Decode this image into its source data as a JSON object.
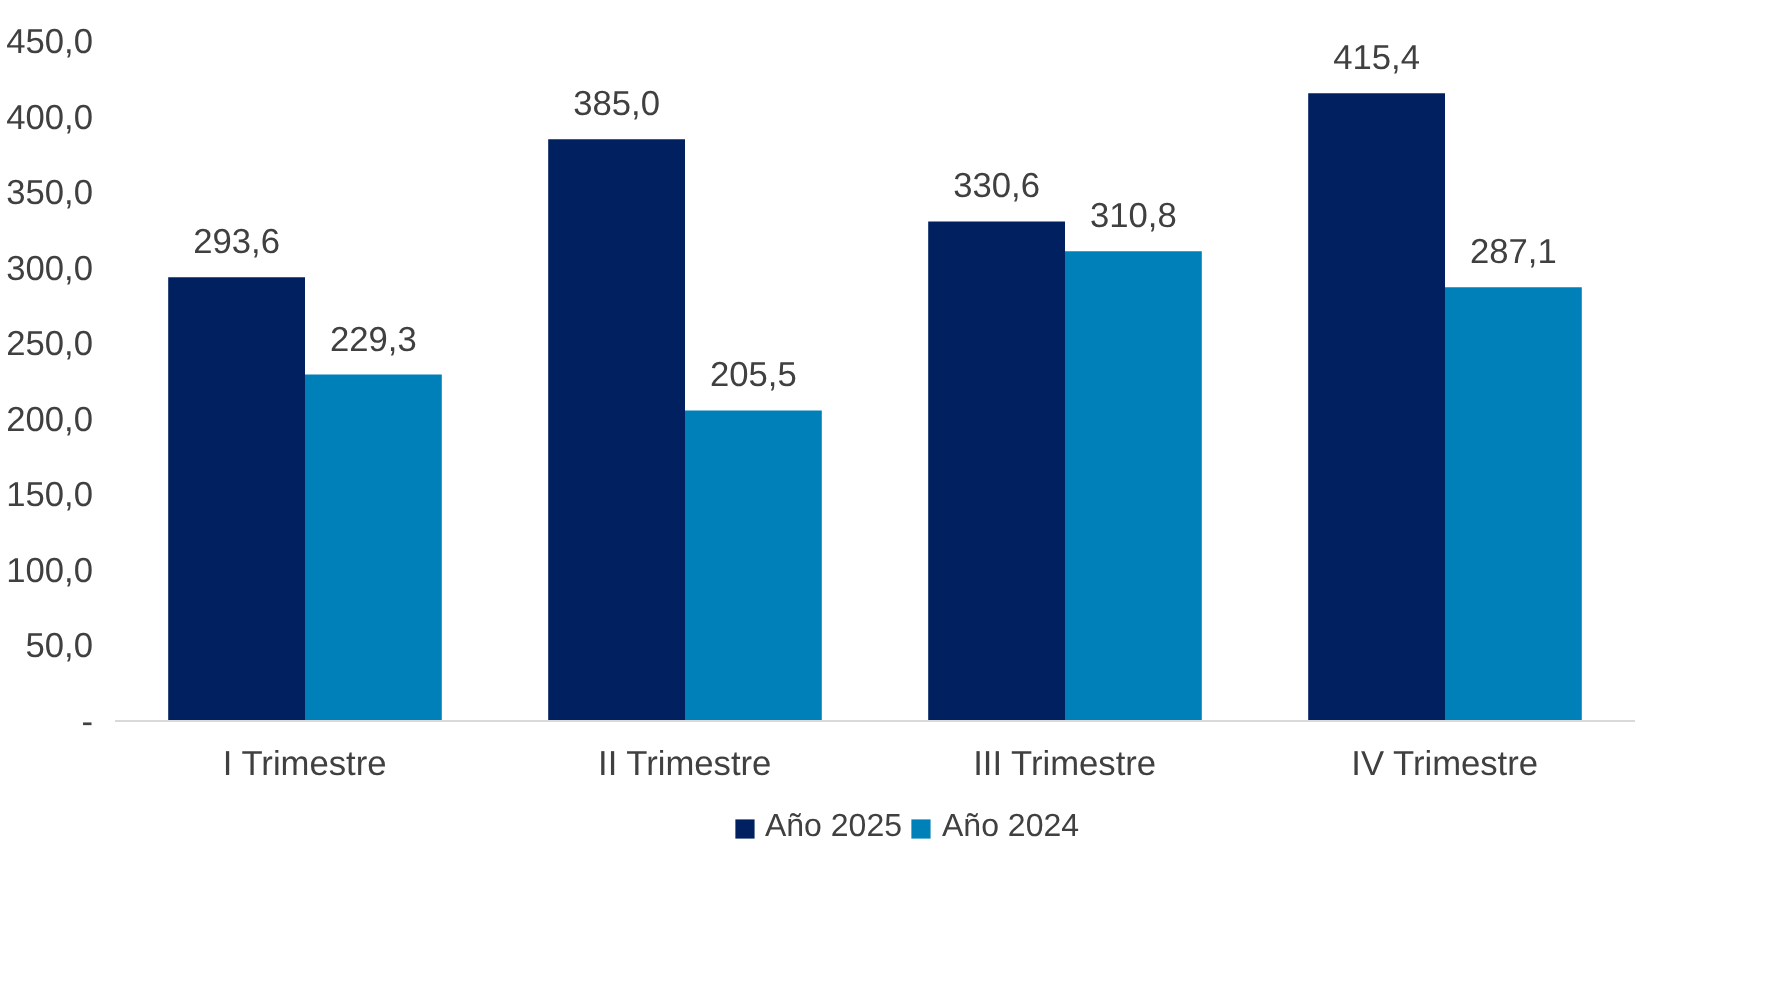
{
  "chart_data": {
    "type": "bar",
    "categories": [
      "I Trimestre",
      "II Trimestre",
      "III Trimestre",
      "IV Trimestre"
    ],
    "series": [
      {
        "name": "Año 2025",
        "color": "#002060",
        "values": [
          293.6,
          385.0,
          330.6,
          415.4
        ],
        "value_labels": [
          "293,6",
          "385,0",
          "330,6",
          "415,4"
        ]
      },
      {
        "name": "Año 2024",
        "color": "#0080b9",
        "values": [
          229.3,
          205.5,
          310.8,
          287.1
        ],
        "value_labels": [
          "229,3",
          "205,5",
          "310,8",
          "287,1"
        ]
      }
    ],
    "ylim": [
      0,
      450
    ],
    "yticks": [
      {
        "value": 0,
        "label": "-"
      },
      {
        "value": 50,
        "label": "50,0"
      },
      {
        "value": 100,
        "label": "100,0"
      },
      {
        "value": 150,
        "label": "150,0"
      },
      {
        "value": 200,
        "label": "200,0"
      },
      {
        "value": 250,
        "label": "250,0"
      },
      {
        "value": 300,
        "label": "300,0"
      },
      {
        "value": 350,
        "label": "350,0"
      },
      {
        "value": 400,
        "label": "400,0"
      },
      {
        "value": 450,
        "label": "450,0"
      }
    ],
    "grid": false,
    "legend": "bottom"
  }
}
